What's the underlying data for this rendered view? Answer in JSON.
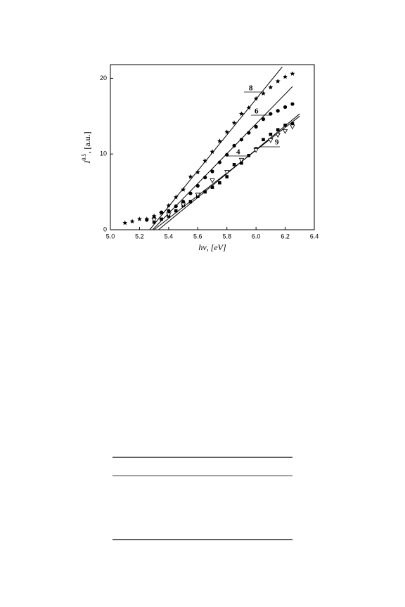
{
  "chart_data": {
    "type": "scatter",
    "x_label": "hν, [eV]",
    "y_label": {
      "symbol": "I",
      "exponent": "0.5",
      "unit": ", [a.u.]"
    },
    "xlim": [
      5.0,
      6.4
    ],
    "ylim": [
      0,
      21.8
    ],
    "xticks": [
      {
        "value": 5.0,
        "label": "5.0"
      },
      5.2,
      5.4,
      5.6,
      5.8,
      {
        "value": 6.0,
        "label": "6.0"
      },
      6.2,
      6.4
    ],
    "yticks": [
      0,
      10,
      20
    ],
    "series": [
      {
        "marker": "star",
        "color": "#000000",
        "x": [
          5.1,
          5.15,
          5.2,
          5.25,
          5.3,
          5.35,
          5.4,
          5.45,
          5.5,
          5.55,
          5.6,
          5.65,
          5.7,
          5.75,
          5.8,
          5.85,
          5.9,
          5.95,
          6.0,
          6.05,
          6.1,
          6.15,
          6.2,
          6.25
        ],
        "values": [
          0.9,
          1.1,
          1.4,
          1.4,
          1.8,
          2.2,
          3.2,
          4.3,
          5.3,
          7.0,
          7.6,
          9.1,
          10.3,
          11.7,
          12.9,
          14.1,
          15.3,
          16.1,
          17.3,
          18.0,
          18.8,
          19.6,
          20.2,
          20.6
        ]
      },
      {
        "marker": "circle",
        "color": "#000000",
        "x": [
          5.25,
          5.3,
          5.35,
          5.4,
          5.45,
          5.5,
          5.55,
          5.6,
          5.65,
          5.7,
          5.75,
          5.8,
          5.85,
          5.9,
          5.95,
          6.0,
          6.05,
          6.1,
          6.15,
          6.2,
          6.25
        ],
        "values": [
          1.3,
          1.6,
          2.3,
          2.5,
          3.1,
          3.7,
          4.8,
          5.8,
          6.9,
          7.7,
          8.9,
          9.9,
          11.1,
          11.9,
          12.8,
          13.6,
          14.6,
          15.3,
          15.7,
          16.2,
          16.6
        ]
      },
      {
        "marker": "square",
        "color": "#000000",
        "x": [
          5.3,
          5.35,
          5.4,
          5.45,
          5.5,
          5.55,
          5.6,
          5.65,
          5.7,
          5.75,
          5.8,
          5.85,
          5.9,
          5.95,
          6.0,
          6.05,
          6.1,
          6.15,
          6.2,
          6.25
        ],
        "values": [
          1.0,
          1.4,
          1.8,
          2.5,
          3.2,
          3.7,
          4.4,
          5.0,
          5.6,
          6.2,
          7.0,
          8.6,
          8.8,
          9.8,
          10.7,
          11.9,
          12.6,
          13.2,
          13.8,
          14.0
        ]
      },
      {
        "marker": "triangle-open",
        "color": "#000000",
        "x": [
          5.3,
          5.4,
          5.5,
          5.6,
          5.7,
          5.8,
          5.9,
          6.0,
          6.1,
          6.15,
          6.2,
          6.25
        ],
        "values": [
          1.3,
          2.0,
          3.3,
          4.6,
          6.5,
          7.6,
          9.2,
          10.5,
          11.8,
          12.5,
          13.0,
          13.6
        ]
      }
    ],
    "fit_lines": [
      {
        "x": [
          5.27,
          6.18
        ],
        "values": [
          0,
          21.5
        ]
      },
      {
        "x": [
          5.29,
          6.25
        ],
        "values": [
          0,
          18.9
        ]
      },
      {
        "x": [
          5.3,
          6.3
        ],
        "values": [
          0,
          15.0
        ]
      },
      {
        "x": [
          5.33,
          6.3
        ],
        "values": [
          0,
          15.3
        ]
      }
    ],
    "annotations": [
      "8",
      "6",
      "4",
      "9"
    ]
  }
}
